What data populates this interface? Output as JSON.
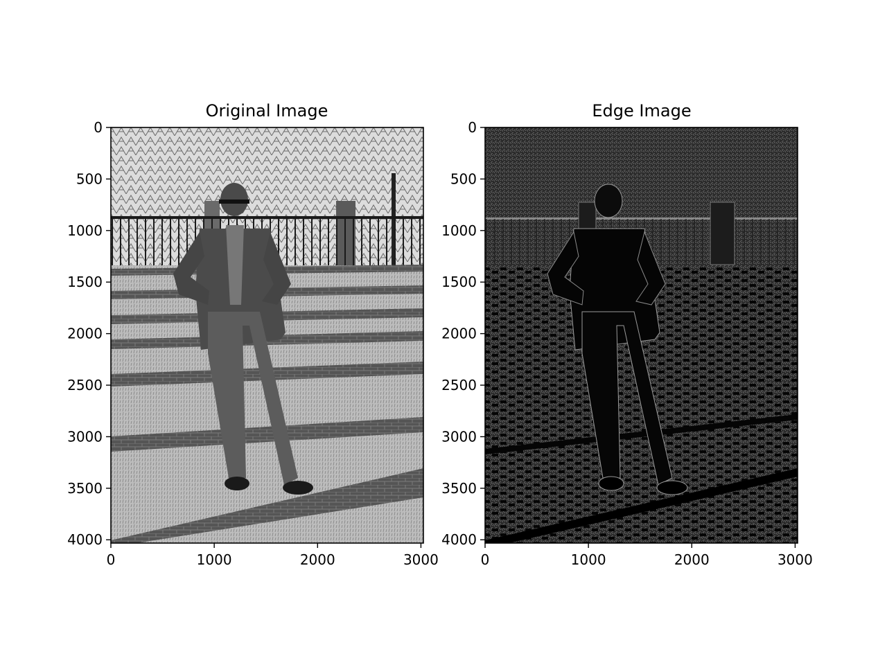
{
  "figure": {
    "panels": [
      {
        "title": "Original Image",
        "description_icon": "photo-grayscale",
        "x_ticks": [
          "0",
          "1000",
          "2000",
          "3000"
        ],
        "y_ticks": [
          "0",
          "500",
          "1000",
          "1500",
          "2000",
          "2500",
          "3000",
          "3500",
          "4000"
        ]
      },
      {
        "title": "Edge Image",
        "description_icon": "edge-map",
        "x_ticks": [
          "0",
          "1000",
          "2000",
          "3000"
        ],
        "y_ticks": [
          "0",
          "500",
          "1000",
          "1500",
          "2000",
          "2500",
          "3000",
          "3500",
          "4000"
        ]
      }
    ],
    "image_width": 3024,
    "image_height": 4032,
    "colors": {
      "photo_sky": "#d6d6d6",
      "photo_ground": "#b8b8b8",
      "edge_background": "#2e2e2e"
    }
  }
}
